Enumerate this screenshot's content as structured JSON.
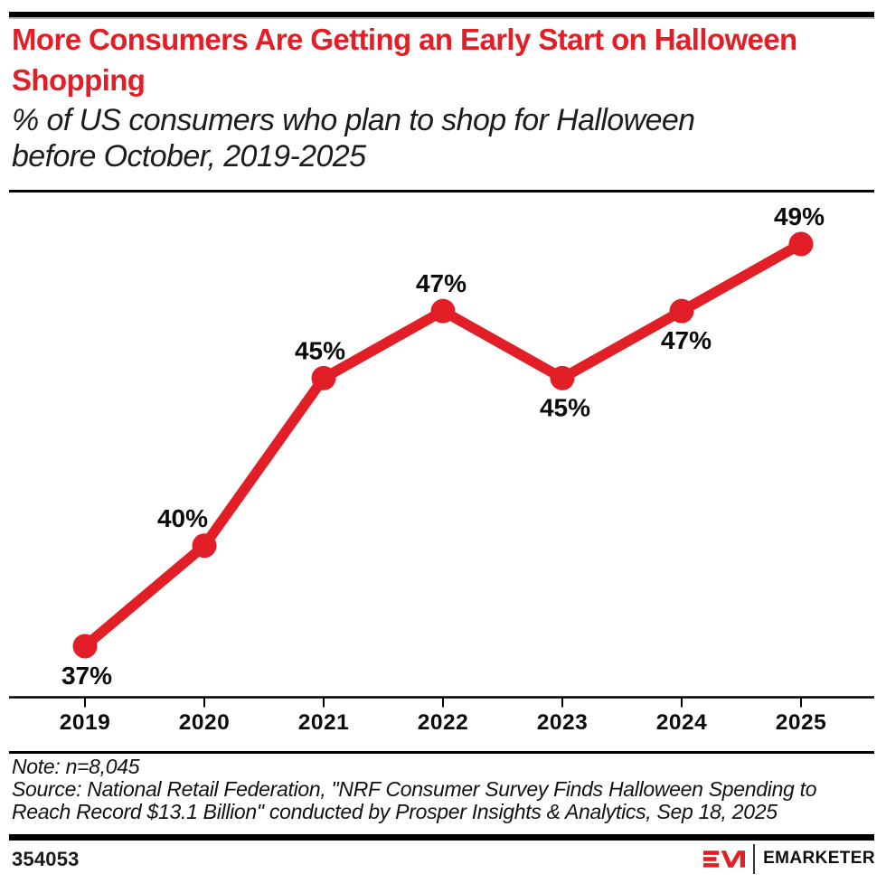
{
  "header": {
    "title": "More Consumers Are Getting an Early Start on Halloween Shopping",
    "subtitle_lines": [
      "% of US consumers who plan to shop for Halloween",
      "before October, 2019-2025"
    ]
  },
  "chart_data": {
    "type": "line",
    "title": "More Consumers Are Getting an Early Start on Halloween Shopping",
    "subtitle": "% of US consumers who plan to shop for Halloween before October, 2019-2025",
    "categories": [
      "2019",
      "2020",
      "2021",
      "2022",
      "2023",
      "2024",
      "2025"
    ],
    "series": [
      {
        "name": "% of US consumers who plan to shop for Halloween before October",
        "values": [
          37,
          40,
          45,
          47,
          45,
          47,
          49
        ]
      }
    ],
    "data_labels": [
      "37%",
      "40%",
      "45%",
      "47%",
      "45%",
      "47%",
      "49%"
    ],
    "label_positions": [
      "below",
      "above",
      "above",
      "above",
      "below",
      "below",
      "above"
    ],
    "label_dx": [
      2,
      -24,
      -4,
      -2,
      3,
      5,
      -2
    ],
    "unit": "%",
    "ylim": [
      35,
      51
    ],
    "grid": false,
    "legend": "none",
    "line_color": "#e21f26",
    "marker": "circle",
    "xlabel": "",
    "ylabel": ""
  },
  "footer": {
    "note": "Note: n=8,045",
    "source_lines": [
      "Source: National Retail Federation, \"NRF Consumer Survey Finds Halloween Spending to",
      "Reach Record $13.1 Billion\" conducted by Prosper Insights & Analytics, Sep 18, 2025"
    ],
    "chart_id": "354053",
    "brand": "EMARKETER"
  },
  "colors": {
    "accent_red": "#e21f26",
    "text_black": "#111111",
    "bar_black": "#000000"
  }
}
